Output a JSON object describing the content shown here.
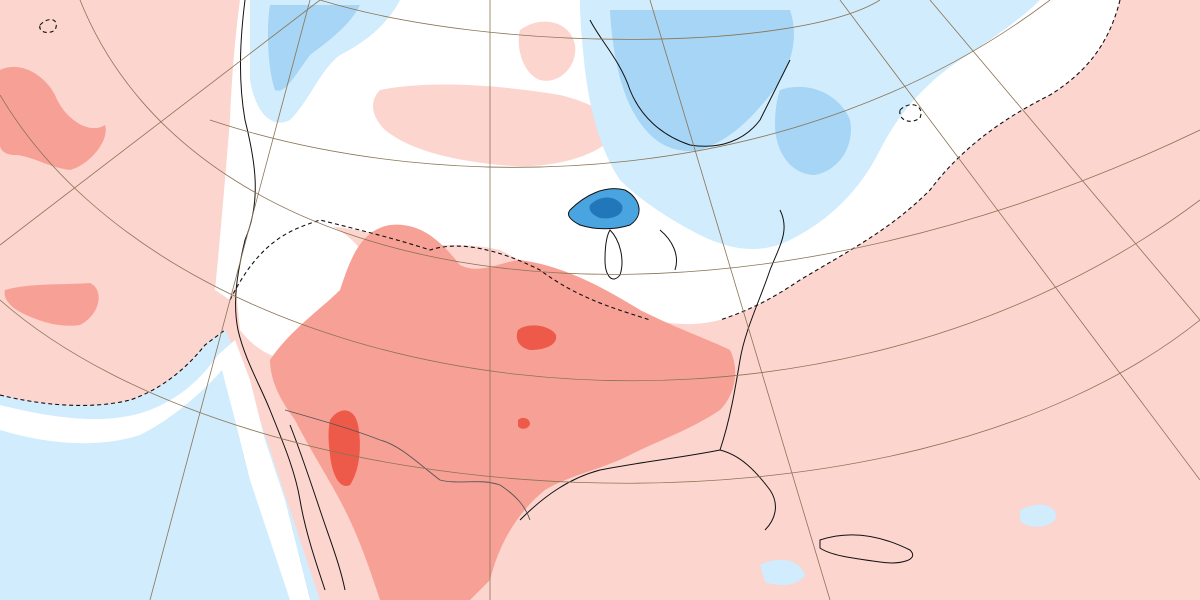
{
  "map": {
    "projection": "polar-stereographic-north-america",
    "palette": {
      "warm_1": "#fcd5cf",
      "warm_2": "#f7a196",
      "warm_3": "#ee5a4a",
      "cool_1": "#d1ecfc",
      "cool_2": "#a6d5f5",
      "cool_3": "#4aa4e0",
      "cool_4": "#2277bb",
      "neutral": "#ffffff",
      "coast": "#111111",
      "border": "#555555",
      "graticule": "#8b7355",
      "zero_contour": "#111111"
    },
    "legend_shown": false,
    "graticule_shown": true
  }
}
